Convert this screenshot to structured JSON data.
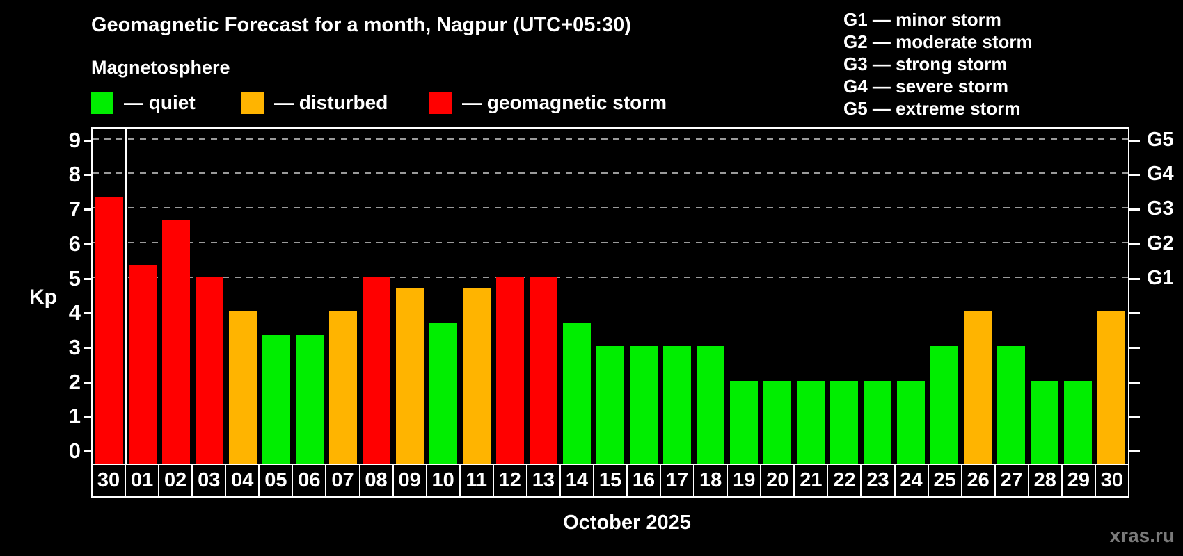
{
  "header": {
    "title": "Geomagnetic Forecast for a month, Nagpur (UTC+05:30)",
    "subtitle": "Magnetosphere"
  },
  "legend": {
    "items": [
      {
        "key": "quiet",
        "label": "— quiet",
        "color": "#00ee00"
      },
      {
        "key": "disturbed",
        "label": "— disturbed",
        "color": "#ffb400"
      },
      {
        "key": "storm",
        "label": "— geomagnetic storm",
        "color": "#ff0000"
      }
    ]
  },
  "g_legend": {
    "items": [
      "G1 — minor storm",
      "G2 — moderate storm",
      "G3 — strong storm",
      "G4 — severe storm",
      "G5 — extreme storm"
    ]
  },
  "chart_data": {
    "type": "bar",
    "title": "Geomagnetic Forecast for a month, Nagpur (UTC+05:30)",
    "ylabel": "Kp",
    "xlabel": "October 2025",
    "ylim": [
      0,
      9
    ],
    "yticks": [
      0,
      1,
      2,
      3,
      4,
      5,
      6,
      7,
      8,
      9
    ],
    "gridlines_at": [
      5,
      6,
      7,
      8,
      9
    ],
    "grid": "dashed horizontal lines at storm levels only",
    "legend_position": "top-left and top-right",
    "separator_after_index": 0,
    "categories": [
      "30",
      "01",
      "02",
      "03",
      "04",
      "05",
      "06",
      "07",
      "08",
      "09",
      "10",
      "11",
      "12",
      "13",
      "14",
      "15",
      "16",
      "17",
      "18",
      "19",
      "20",
      "21",
      "22",
      "23",
      "24",
      "25",
      "26",
      "27",
      "28",
      "29",
      "30"
    ],
    "values": [
      7.33,
      5.33,
      6.67,
      5,
      4,
      3.33,
      3.33,
      4,
      5,
      4.67,
      3.67,
      4.67,
      5,
      5,
      3.67,
      3,
      3,
      3,
      3,
      2,
      2,
      2,
      2,
      2,
      2,
      3,
      4,
      3,
      2,
      2,
      4
    ],
    "statuses": [
      "storm",
      "storm",
      "storm",
      "storm",
      "disturbed",
      "quiet",
      "quiet",
      "disturbed",
      "storm",
      "disturbed",
      "quiet",
      "disturbed",
      "storm",
      "storm",
      "quiet",
      "quiet",
      "quiet",
      "quiet",
      "quiet",
      "quiet",
      "quiet",
      "quiet",
      "quiet",
      "quiet",
      "quiet",
      "quiet",
      "disturbed",
      "quiet",
      "quiet",
      "quiet",
      "disturbed"
    ],
    "colors": {
      "quiet": "#00ee00",
      "disturbed": "#ffb400",
      "storm": "#ff0000"
    },
    "right_axis_labels": [
      {
        "kp": 5,
        "label": "G1"
      },
      {
        "kp": 6,
        "label": "G2"
      },
      {
        "kp": 7,
        "label": "G3"
      },
      {
        "kp": 8,
        "label": "G4"
      },
      {
        "kp": 9,
        "label": "G5"
      }
    ]
  },
  "footer": {
    "month_label": "October 2025",
    "watermark": "xras.ru"
  }
}
